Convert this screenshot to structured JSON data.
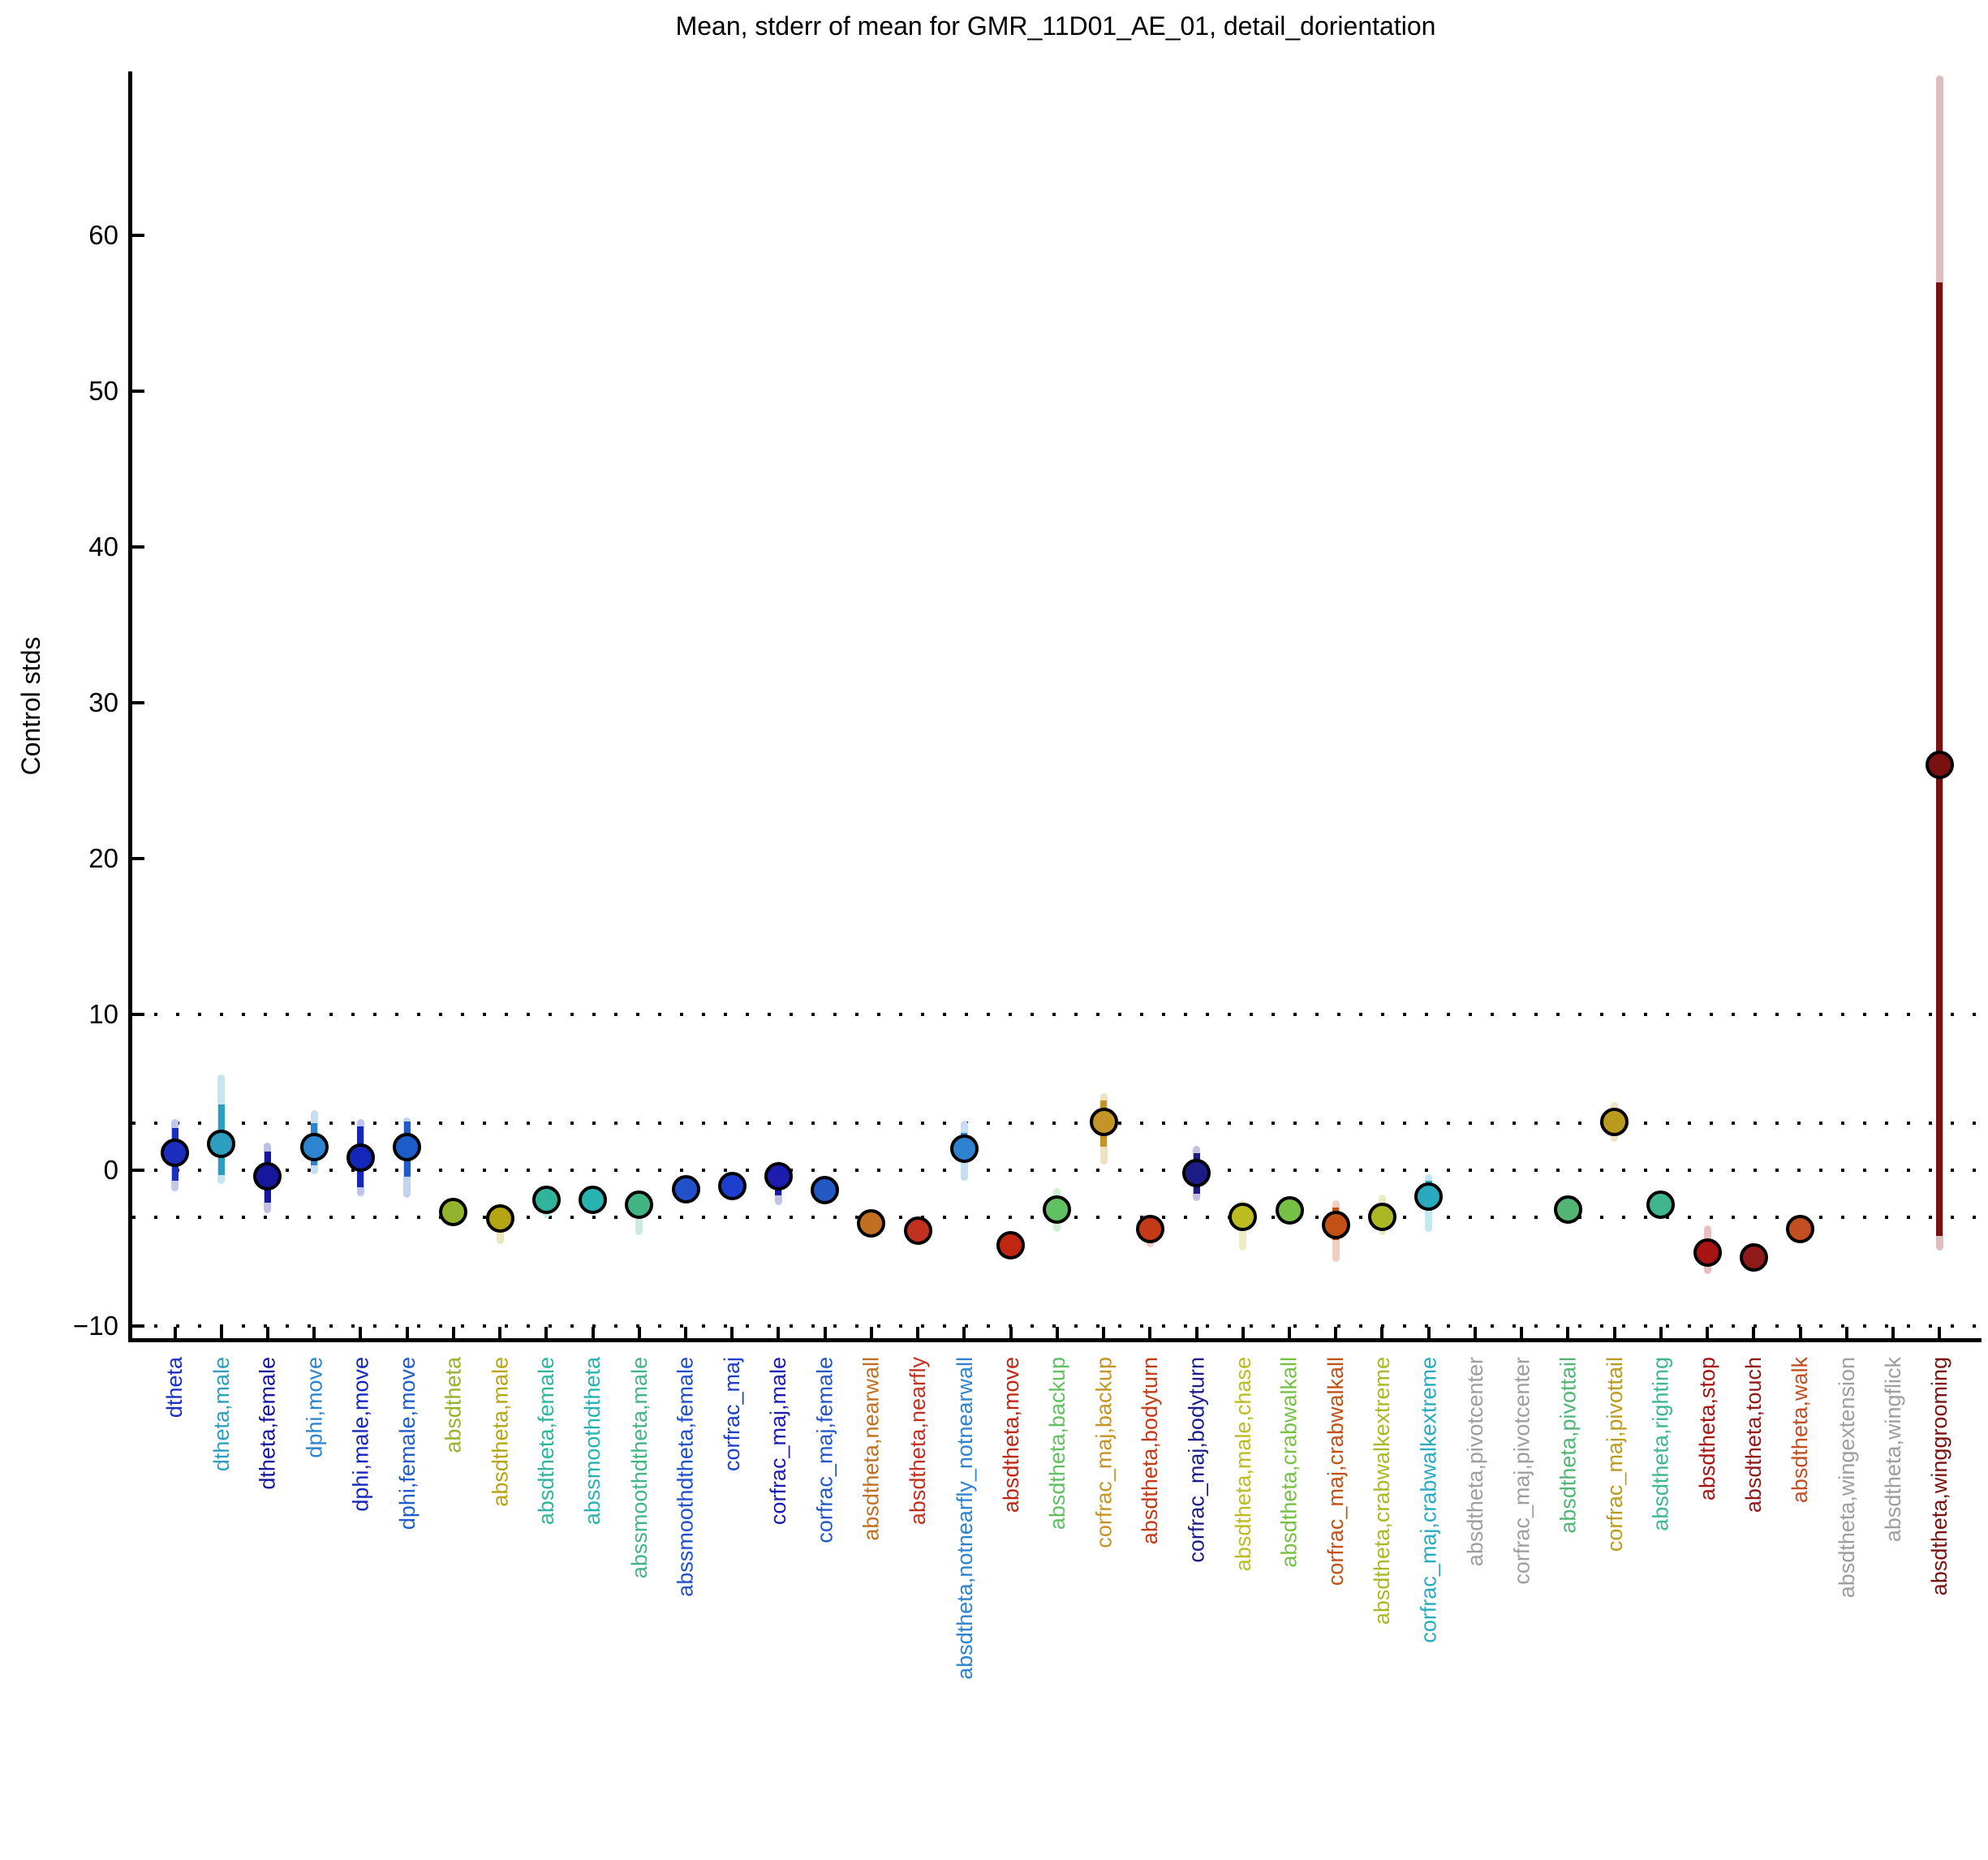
{
  "title": "Mean, stderr of mean for GMR_11D01_AE_01, detail_dorientation",
  "y_axis": {
    "label": "Control stds",
    "tick_values": [
      60,
      50,
      40,
      30,
      20,
      10,
      0,
      -10
    ],
    "dotted_gridlines_at": [
      10,
      3,
      0,
      -3,
      -10
    ]
  },
  "chart_data": {
    "type": "scatter",
    "title": "Mean, stderr of mean for GMR_11D01_AE_01, detail_dorientation",
    "xlabel": "",
    "ylabel": "Control stds",
    "ylim": [
      -11.5,
      70.4
    ],
    "legend": "none",
    "grid": "horizontal dotted lines at 10, 3, 0, -3, -10",
    "marker_edge_color": "#000000",
    "categories": [
      "dtheta",
      "dtheta,male",
      "dtheta,female",
      "dphi,move",
      "dphi,male,move",
      "dphi,female,move",
      "absdtheta",
      "absdtheta,male",
      "absdtheta,female",
      "abssmoothdtheta",
      "abssmoothdtheta,male",
      "abssmoothdtheta,female",
      "corfrac_maj",
      "corfrac_maj,male",
      "corfrac_maj,female",
      "absdtheta,nearwall",
      "absdtheta,nearfly",
      "absdtheta,notnearfly_notnearwall",
      "absdtheta,move",
      "absdtheta,backup",
      "corfrac_maj,backup",
      "absdtheta,bodyturn",
      "corfrac_maj,bodyturn",
      "absdtheta,male,chase",
      "absdtheta,crabwalkall",
      "corfrac_maj,crabwalkall",
      "absdtheta,crabwalkextreme",
      "corfrac_maj,crabwalkextreme",
      "absdtheta,pivotcenter",
      "corfrac_maj,pivotcenter",
      "absdtheta,pivottail",
      "corfrac_maj,pivottail",
      "absdtheta,righting",
      "absdtheta,stop",
      "absdtheta,touch",
      "absdtheta,walk",
      "absdtheta,wingextension",
      "absdtheta,wingflick",
      "absdtheta,winggrooming"
    ],
    "colors": [
      "#1c2ec0",
      "#2e9ec0",
      "#17179e",
      "#2d84cf",
      "#1526bb",
      "#1d5dc9",
      "#94b32c",
      "#b5a414",
      "#30b49c",
      "#28b3b0",
      "#43b585",
      "#2150c9",
      "#1d3ecf",
      "#1c1caf",
      "#2458c4",
      "#c07020",
      "#c03120",
      "#2e82cf",
      "#c02713",
      "#61c061",
      "#c39426",
      "#c23a16",
      "#1c1c87",
      "#bcbc20",
      "#76c046",
      "#c35015",
      "#abb723",
      "#29aabf",
      "#9e9e9e",
      "#9e9e9e",
      "#52b573",
      "#bb9b1e",
      "#3fb68f",
      "#a81414",
      "#8f1a1a",
      "#c24e21",
      "#9e9e9e",
      "#9e9e9e",
      "#7a1010"
    ],
    "means": [
      1.1,
      1.7,
      -0.4,
      1.5,
      0.8,
      1.5,
      -2.7,
      -3.1,
      -1.9,
      -1.9,
      -2.2,
      -1.2,
      -1.0,
      -0.4,
      -1.3,
      -3.4,
      -3.9,
      1.4,
      -4.8,
      -2.5,
      3.1,
      -3.8,
      -0.2,
      -3.0,
      -2.6,
      -3.5,
      -3.0,
      -1.7,
      null,
      null,
      -2.5,
      3.1,
      -2.2,
      -5.3,
      -5.6,
      -3.8,
      null,
      null,
      26.0
    ],
    "stderr_range": [
      [
        2.7,
        -0.7
      ],
      [
        4.2,
        -0.3
      ],
      [
        1.2,
        -2.1
      ],
      [
        3.0,
        0.3
      ],
      [
        2.8,
        -1.1
      ],
      [
        3.1,
        -0.4
      ],
      [
        -2.3,
        -3.1
      ],
      [
        -2.6,
        -3.8
      ],
      [
        -1.6,
        -2.3
      ],
      [
        -1.6,
        -2.2
      ],
      [
        -1.9,
        -2.6
      ],
      [
        -0.9,
        -1.6
      ],
      [
        -0.6,
        -1.3
      ],
      [
        0.1,
        -1.6
      ],
      [
        -0.9,
        -1.7
      ],
      [
        -3.1,
        -3.8
      ],
      [
        -3.6,
        -4.2
      ],
      [
        2.4,
        0.5
      ],
      [
        -4.6,
        -5.1
      ],
      [
        -2.1,
        -2.9
      ],
      [
        4.5,
        1.5
      ],
      [
        -3.5,
        -4.1
      ],
      [
        1.1,
        -1.5
      ],
      [
        -2.7,
        -3.4
      ],
      [
        -2.3,
        -2.9
      ],
      [
        -2.4,
        -4.5
      ],
      [
        -2.7,
        -3.4
      ],
      [
        -0.7,
        -2.6
      ],
      null,
      null,
      [
        -2.2,
        -2.8
      ],
      [
        3.5,
        2.6
      ],
      [
        -1.9,
        -2.5
      ],
      [
        -4.9,
        -5.6
      ],
      [
        -5.4,
        -5.9
      ],
      [
        -3.5,
        -4.0
      ],
      null,
      null,
      [
        57.0,
        -4.2
      ]
    ],
    "light_range": [
      [
        3.0,
        -1.1
      ],
      [
        5.9,
        -0.6
      ],
      [
        1.5,
        -2.5
      ],
      [
        3.6,
        0.0
      ],
      [
        3.0,
        -1.4
      ],
      [
        3.1,
        -1.5
      ],
      [
        -2.1,
        -3.3
      ],
      [
        -2.4,
        -4.5
      ],
      [
        -1.4,
        -2.8
      ],
      [
        -1.5,
        -2.5
      ],
      [
        -1.7,
        -3.9
      ],
      [
        -0.8,
        -1.8
      ],
      [
        -0.5,
        -1.5
      ],
      [
        0.3,
        -2.0
      ],
      [
        -0.8,
        -1.9
      ],
      [
        -2.9,
        -4.0
      ],
      [
        -3.5,
        -4.4
      ],
      [
        2.9,
        -0.4
      ],
      [
        -4.4,
        -5.4
      ],
      [
        -1.4,
        -3.7
      ],
      [
        4.7,
        0.6
      ],
      [
        -3.3,
        -4.7
      ],
      [
        1.3,
        -1.7
      ],
      [
        -2.2,
        -4.9
      ],
      [
        -2.1,
        -3.1
      ],
      [
        -2.2,
        -5.6
      ],
      [
        -1.8,
        -3.9
      ],
      [
        -0.5,
        -3.7
      ],
      null,
      null,
      [
        -2.1,
        -3.0
      ],
      [
        4.1,
        2.1
      ],
      [
        -1.8,
        -2.7
      ],
      [
        -3.8,
        -6.4
      ],
      [
        -5.2,
        -6.1
      ],
      [
        -3.3,
        -4.2
      ],
      null,
      null,
      [
        70.0,
        -4.9
      ]
    ]
  }
}
